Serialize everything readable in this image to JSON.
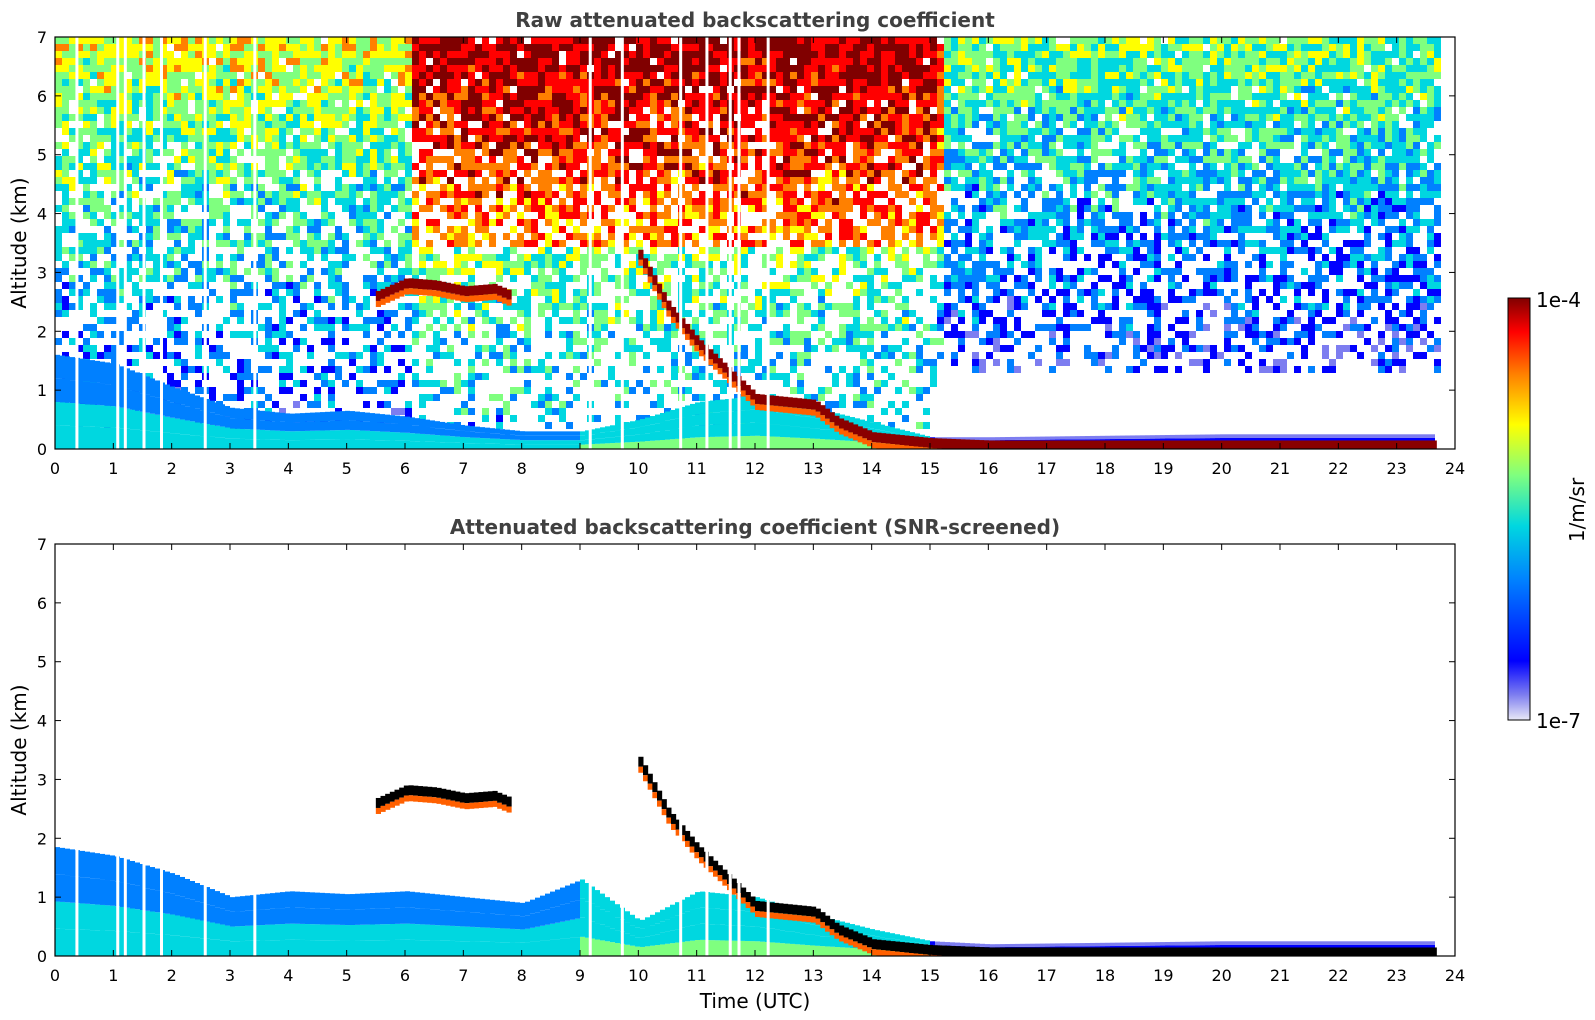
{
  "chart_data": [
    {
      "type": "heatmap",
      "title": "Raw attenuated backscattering coefficient",
      "xlabel": "",
      "ylabel": "Altitude (km)",
      "xlim": [
        0,
        24
      ],
      "ylim": [
        0,
        7
      ],
      "x_ticks": [
        "0",
        "1",
        "2",
        "3",
        "4",
        "5",
        "6",
        "7",
        "8",
        "9",
        "10",
        "11",
        "12",
        "13",
        "14",
        "15",
        "16",
        "17",
        "18",
        "19",
        "20",
        "21",
        "22",
        "23",
        "24"
      ],
      "y_ticks": [
        "0",
        "1",
        "2",
        "3",
        "4",
        "5",
        "6",
        "7"
      ],
      "data_end_hour": 23.65,
      "background_noise": "increases with altitude; strongest (yellow-red) aloft between 6 and 15 UTC",
      "data_gaps_hours": [
        0.35,
        1.05,
        1.18,
        1.5,
        1.8,
        2.55,
        3.4,
        9.15,
        9.7,
        10.7,
        11.15,
        11.55,
        11.7,
        12.2
      ],
      "layers": [
        {
          "name": "boundary layer",
          "x": [
            0,
            1,
            2,
            3,
            4,
            5,
            6,
            7,
            8,
            9,
            10,
            11,
            12,
            13,
            14,
            15,
            16,
            20,
            23.6
          ],
          "top": [
            1.6,
            1.45,
            1.05,
            0.7,
            0.6,
            0.65,
            0.55,
            0.4,
            0.3,
            0.3,
            0.5,
            0.8,
            0.9,
            0.7,
            0.45,
            0.2,
            0.2,
            0.25,
            0.25
          ]
        },
        {
          "name": "elevated layer",
          "x": [
            5.5,
            6.0,
            6.5,
            7.0,
            7.5,
            7.8
          ],
          "height": [
            2.6,
            2.82,
            2.78,
            2.68,
            2.72,
            2.6
          ]
        },
        {
          "name": "cloud base",
          "x": [
            10.0,
            10.5,
            11.0,
            12.0,
            13.0,
            13.4,
            14.0,
            15.0,
            16.0,
            23.6
          ],
          "height": [
            3.3,
            2.4,
            1.8,
            0.85,
            0.75,
            0.45,
            0.2,
            0.1,
            0.06,
            0.06
          ]
        }
      ]
    },
    {
      "type": "heatmap",
      "title": "Attenuated backscattering coefficient (SNR-screened)",
      "xlabel": "Time (UTC)",
      "ylabel": "Altitude (km)",
      "xlim": [
        0,
        24
      ],
      "ylim": [
        0,
        7
      ],
      "x_ticks": [
        "0",
        "1",
        "2",
        "3",
        "4",
        "5",
        "6",
        "7",
        "8",
        "9",
        "10",
        "11",
        "12",
        "13",
        "14",
        "15",
        "16",
        "17",
        "18",
        "19",
        "20",
        "21",
        "22",
        "23",
        "24"
      ],
      "y_ticks": [
        "0",
        "1",
        "2",
        "3",
        "4",
        "5",
        "6",
        "7"
      ],
      "data_end_hour": 23.65,
      "background_noise": "screened out (white above aerosol layers)",
      "layers": [
        {
          "name": "boundary layer",
          "x": [
            0,
            1,
            2,
            3,
            4,
            5,
            6,
            7,
            8,
            9,
            10,
            11,
            12,
            13,
            14,
            15,
            16,
            20,
            23.6
          ],
          "top": [
            1.85,
            1.7,
            1.4,
            1.0,
            1.1,
            1.05,
            1.1,
            1.0,
            0.9,
            1.3,
            0.6,
            1.1,
            1.0,
            0.7,
            0.45,
            0.25,
            0.2,
            0.25,
            0.25
          ]
        },
        {
          "name": "elevated layer",
          "x": [
            5.5,
            6.0,
            6.5,
            7.0,
            7.5,
            7.8
          ],
          "height": [
            2.6,
            2.82,
            2.78,
            2.68,
            2.72,
            2.6
          ]
        },
        {
          "name": "cloud base",
          "x": [
            10.0,
            10.5,
            11.0,
            12.0,
            13.0,
            13.4,
            14.0,
            15.0,
            16.0,
            23.6
          ],
          "height": [
            3.3,
            2.4,
            1.8,
            0.85,
            0.75,
            0.45,
            0.2,
            0.1,
            0.06,
            0.06
          ]
        }
      ]
    }
  ],
  "colorbar": {
    "label": "1/m/sr",
    "max_label": "1e-4",
    "min_label": "1e-7",
    "scale": "log",
    "colors": [
      "#e8e8f6",
      "#7d7df0",
      "#0000ff",
      "#0080ff",
      "#00d7e0",
      "#7fff7f",
      "#ffff00",
      "#ff8000",
      "#ff0000",
      "#800000"
    ]
  }
}
